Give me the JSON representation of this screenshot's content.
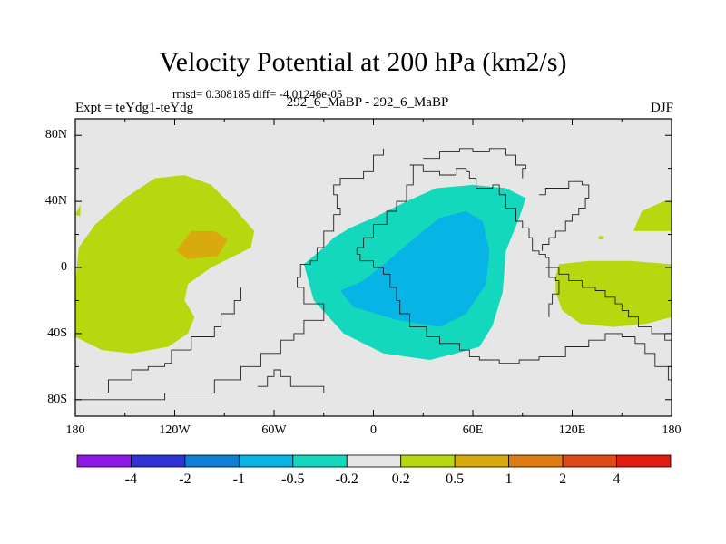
{
  "header": {
    "title": "Velocity Potential at 200 hPa (km2/s)",
    "stats": "rmsd= 0.308185 diff= -4.01246e-05",
    "expt": "Expt = teYdg1-teYdg",
    "case_name": "292_6_MaBP - 292_6_MaBP",
    "season": "DJF"
  },
  "chart_data": {
    "type": "filled-contour map",
    "title": "Velocity Potential at 200 hPa (km2/s)",
    "units": "km2/s",
    "xlim": [
      -180,
      180
    ],
    "ylim": [
      -90,
      90
    ],
    "x_ticks": [
      {
        "value": -180,
        "label": "180"
      },
      {
        "value": -120,
        "label": "120W"
      },
      {
        "value": -60,
        "label": "60W"
      },
      {
        "value": 0,
        "label": "0"
      },
      {
        "value": 60,
        "label": "60E"
      },
      {
        "value": 120,
        "label": "120E"
      },
      {
        "value": 180,
        "label": "180"
      }
    ],
    "y_ticks": [
      {
        "value": 80,
        "label": "80N"
      },
      {
        "value": 40,
        "label": "40N"
      },
      {
        "value": 0,
        "label": "0"
      },
      {
        "value": -40,
        "label": "40S"
      },
      {
        "value": -80,
        "label": "80S"
      }
    ],
    "background_color": "#e6e6e6",
    "colorbar": {
      "levels": [
        "-4",
        "-2",
        "-1",
        "-0.5",
        "-0.2",
        "0.2",
        "0.5",
        "1",
        "2",
        "4"
      ],
      "colors": [
        "#8c17e6",
        "#2f32d6",
        "#0c7fd6",
        "#08b3e6",
        "#14d8bd",
        "#e6e6e6",
        "#b7d80e",
        "#d9aa0d",
        "#e07b12",
        "#e04a12",
        "#e11a12"
      ]
    },
    "regions": [
      {
        "name": "pacific-positive",
        "category": "0.2 to 0.5",
        "color": "#b7d80e",
        "points": [
          [
            -180,
            -10
          ],
          [
            -178,
            12
          ],
          [
            -168,
            26
          ],
          [
            -150,
            42
          ],
          [
            -132,
            54
          ],
          [
            -114,
            56
          ],
          [
            -98,
            50
          ],
          [
            -84,
            36
          ],
          [
            -72,
            22
          ],
          [
            -74,
            12
          ],
          [
            -98,
            0
          ],
          [
            -112,
            -10
          ],
          [
            -114,
            -20
          ],
          [
            -108,
            -30
          ],
          [
            -112,
            -40
          ],
          [
            -124,
            -48
          ],
          [
            -146,
            -52
          ],
          [
            -164,
            -50
          ],
          [
            -180,
            -42
          ]
        ]
      },
      {
        "name": "pacific-core",
        "category": "0.5 to 1",
        "color": "#d9aa0d",
        "points": [
          [
            -119,
            10
          ],
          [
            -110,
            22
          ],
          [
            -96,
            22
          ],
          [
            -88,
            17
          ],
          [
            -94,
            7
          ],
          [
            -112,
            5
          ]
        ]
      },
      {
        "name": "small-west-patch",
        "category": "0.2 to 0.5",
        "color": "#b7d80e",
        "points": [
          [
            -180,
            32
          ],
          [
            -177,
            38
          ],
          [
            -177,
            31
          ]
        ]
      },
      {
        "name": "east-pacific-positive",
        "category": "0.2 to 0.5",
        "color": "#b7d80e",
        "points": [
          [
            110,
            -5
          ],
          [
            112,
            2
          ],
          [
            130,
            4
          ],
          [
            155,
            4
          ],
          [
            180,
            2
          ],
          [
            180,
            -30
          ],
          [
            165,
            -34
          ],
          [
            145,
            -36
          ],
          [
            125,
            -34
          ],
          [
            114,
            -26
          ],
          [
            110,
            -15
          ]
        ]
      },
      {
        "name": "dateline-positive",
        "category": "0.2 to 0.5",
        "color": "#b7d80e",
        "points": [
          [
            157,
            22
          ],
          [
            162,
            34
          ],
          [
            175,
            40
          ],
          [
            180,
            40
          ],
          [
            180,
            22
          ]
        ]
      },
      {
        "name": "dot-positive",
        "category": "0.2 to 0.5",
        "color": "#b7d80e",
        "points": [
          [
            136,
            17
          ],
          [
            139,
            17
          ],
          [
            139,
            19
          ],
          [
            136,
            19
          ]
        ]
      },
      {
        "name": "africa-negative",
        "category": "-0.5 to -0.2",
        "color": "#14d8bd",
        "points": [
          [
            -42,
            2
          ],
          [
            -36,
            -20
          ],
          [
            -18,
            -40
          ],
          [
            6,
            -52
          ],
          [
            34,
            -56
          ],
          [
            50,
            -52
          ],
          [
            64,
            -48
          ],
          [
            72,
            -35
          ],
          [
            78,
            -15
          ],
          [
            80,
            10
          ],
          [
            88,
            30
          ],
          [
            92,
            42
          ],
          [
            80,
            48
          ],
          [
            60,
            50
          ],
          [
            38,
            48
          ],
          [
            20,
            40
          ],
          [
            0,
            30
          ],
          [
            -14,
            24
          ],
          [
            -24,
            18
          ],
          [
            -30,
            12
          ]
        ]
      },
      {
        "name": "africa-core",
        "category": "-1 to -0.5",
        "color": "#08b3e6",
        "points": [
          [
            -20,
            -14
          ],
          [
            -6,
            -8
          ],
          [
            10,
            5
          ],
          [
            25,
            18
          ],
          [
            40,
            30
          ],
          [
            56,
            34
          ],
          [
            66,
            28
          ],
          [
            70,
            10
          ],
          [
            68,
            -10
          ],
          [
            56,
            -28
          ],
          [
            40,
            -36
          ],
          [
            15,
            -32
          ],
          [
            -12,
            -24
          ]
        ]
      }
    ],
    "coastlines": [
      {
        "name": "americas-coastline",
        "points": [
          [
            -180,
            -80
          ],
          [
            -126,
            -80
          ],
          [
            -126,
            -76
          ],
          [
            -96,
            -76
          ],
          [
            -96,
            -68
          ],
          [
            -80,
            -68
          ],
          [
            -80,
            -60
          ],
          [
            -68,
            -60
          ],
          [
            -68,
            -52
          ],
          [
            -56,
            -52
          ],
          [
            -56,
            -44
          ],
          [
            -48,
            -44
          ],
          [
            -48,
            -40
          ],
          [
            -42,
            -40
          ],
          [
            -42,
            -32
          ],
          [
            -30,
            -32
          ],
          [
            -30,
            -22
          ],
          [
            -36,
            -22
          ],
          [
            -42,
            -12
          ],
          [
            -46,
            -6
          ],
          [
            -44,
            2
          ],
          [
            -38,
            4
          ],
          [
            -34,
            12
          ],
          [
            -30,
            22
          ],
          [
            -24,
            32
          ],
          [
            -20,
            36
          ],
          [
            -22,
            44
          ],
          [
            -24,
            50
          ],
          [
            -20,
            54
          ],
          [
            -12,
            54
          ],
          [
            -6,
            58
          ],
          [
            0,
            68
          ],
          [
            6,
            72
          ]
        ]
      },
      {
        "name": "west-antarctica-coastline",
        "points": [
          [
            -170,
            -76
          ],
          [
            -160,
            -68
          ],
          [
            -146,
            -62
          ],
          [
            -136,
            -60
          ],
          [
            -126,
            -58
          ],
          [
            -122,
            -50
          ],
          [
            -112,
            -50
          ],
          [
            -110,
            -42
          ],
          [
            -102,
            -42
          ],
          [
            -96,
            -36
          ],
          [
            -92,
            -28
          ],
          [
            -84,
            -20
          ],
          [
            -80,
            -12
          ]
        ]
      },
      {
        "name": "antarctic-peninsula-coastline",
        "points": [
          [
            -70,
            -72
          ],
          [
            -64,
            -66
          ],
          [
            -60,
            -62
          ],
          [
            -56,
            -66
          ],
          [
            -50,
            -72
          ],
          [
            -30,
            -76
          ]
        ]
      },
      {
        "name": "eurasia-africa-coastline",
        "points": [
          [
            22,
            62
          ],
          [
            30,
            58
          ],
          [
            40,
            56
          ],
          [
            50,
            60
          ],
          [
            56,
            58
          ],
          [
            58,
            54
          ],
          [
            62,
            48
          ],
          [
            72,
            50
          ],
          [
            76,
            44
          ],
          [
            80,
            36
          ],
          [
            86,
            28
          ],
          [
            90,
            24
          ],
          [
            94,
            18
          ],
          [
            96,
            10
          ],
          [
            100,
            8
          ],
          [
            104,
            6
          ],
          [
            106,
            0
          ],
          [
            112,
            -4
          ],
          [
            118,
            -8
          ],
          [
            126,
            -12
          ],
          [
            134,
            -14
          ],
          [
            140,
            -18
          ],
          [
            146,
            -22
          ],
          [
            150,
            -26
          ],
          [
            154,
            -30
          ],
          [
            160,
            -36
          ],
          [
            168,
            -40
          ],
          [
            176,
            -44
          ],
          [
            180,
            -46
          ]
        ]
      },
      {
        "name": "africa-west-coastline",
        "points": [
          [
            28,
            62
          ],
          [
            24,
            50
          ],
          [
            20,
            40
          ],
          [
            14,
            34
          ],
          [
            8,
            26
          ],
          [
            0,
            18
          ],
          [
            -6,
            12
          ],
          [
            -10,
            8
          ],
          [
            -8,
            4
          ],
          [
            0,
            0
          ],
          [
            6,
            -4
          ],
          [
            10,
            -12
          ],
          [
            14,
            -20
          ],
          [
            16,
            -28
          ],
          [
            22,
            -36
          ],
          [
            32,
            -42
          ],
          [
            40,
            -46
          ],
          [
            52,
            -50
          ],
          [
            58,
            -54
          ],
          [
            64,
            -56
          ],
          [
            76,
            -58
          ],
          [
            88,
            -56
          ],
          [
            100,
            -54
          ],
          [
            116,
            -48
          ],
          [
            130,
            -44
          ],
          [
            140,
            -40
          ],
          [
            150,
            -42
          ],
          [
            158,
            -46
          ],
          [
            164,
            -52
          ],
          [
            170,
            -60
          ],
          [
            178,
            -68
          ],
          [
            180,
            -70
          ]
        ]
      },
      {
        "name": "east-asia-coastline",
        "points": [
          [
            100,
            44
          ],
          [
            104,
            48
          ],
          [
            110,
            48
          ],
          [
            118,
            52
          ],
          [
            126,
            50
          ],
          [
            130,
            42
          ],
          [
            128,
            36
          ],
          [
            124,
            32
          ],
          [
            120,
            28
          ],
          [
            116,
            22
          ],
          [
            110,
            18
          ],
          [
            106,
            14
          ],
          [
            102,
            10
          ]
        ]
      },
      {
        "name": "maritime-continent-coastline",
        "points": [
          [
            104,
            0
          ],
          [
            106,
            -6
          ],
          [
            110,
            -8
          ],
          [
            112,
            -16
          ],
          [
            108,
            -22
          ],
          [
            106,
            -30
          ]
        ]
      },
      {
        "name": "arctic-coastline",
        "points": [
          [
            30,
            66
          ],
          [
            40,
            70
          ],
          [
            52,
            72
          ],
          [
            60,
            70
          ],
          [
            70,
            72
          ],
          [
            80,
            68
          ],
          [
            86,
            62
          ],
          [
            92,
            60
          ],
          [
            90,
            54
          ]
        ]
      }
    ]
  },
  "colorbar_labels": [
    "-4",
    "-2",
    "-1",
    "-0.5",
    "-0.2",
    "0.2",
    "0.5",
    "1",
    "2",
    "4"
  ]
}
